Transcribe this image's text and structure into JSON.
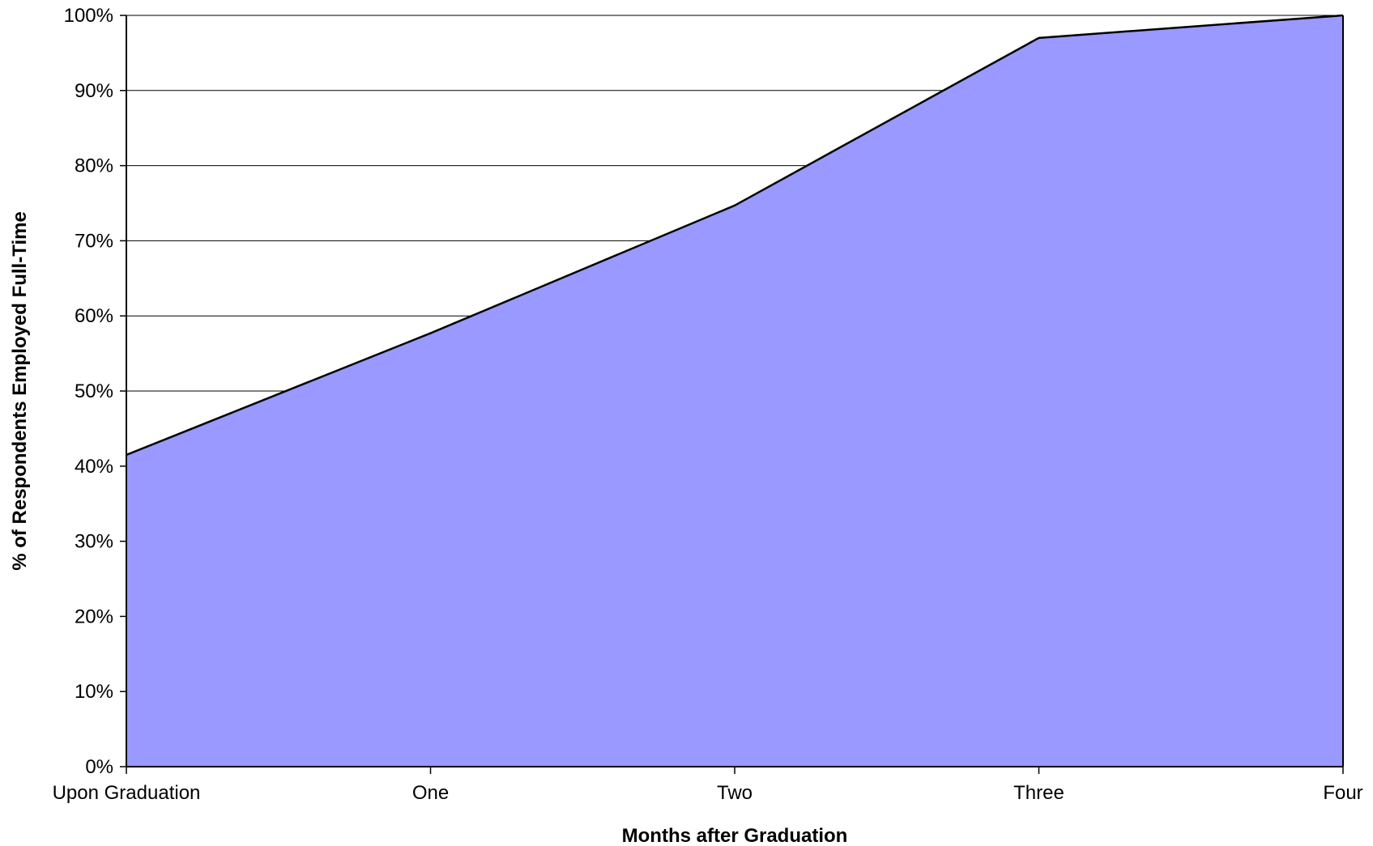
{
  "chart_data": {
    "type": "area",
    "title": "",
    "xlabel": "Months after Graduation",
    "ylabel": "% of Respondents Employed Full-Time",
    "categories": [
      "Upon Graduation",
      "One",
      "Two",
      "Three",
      "Four"
    ],
    "series": [
      {
        "values": [
          41.5,
          57.7,
          74.7,
          97.0,
          100.0
        ]
      }
    ],
    "ylim": [
      0,
      100
    ],
    "y_ticks": [
      0,
      10,
      20,
      30,
      40,
      50,
      60,
      70,
      80,
      90,
      100
    ],
    "y_tick_labels": [
      "0%",
      "10%",
      "20%",
      "30%",
      "40%",
      "50%",
      "60%",
      "70%",
      "80%",
      "90%",
      "100%"
    ],
    "grid": "horizontal",
    "legend": "none",
    "colors": {
      "fill": "#9999ff",
      "line": "#000000",
      "grid": "#000000"
    }
  }
}
